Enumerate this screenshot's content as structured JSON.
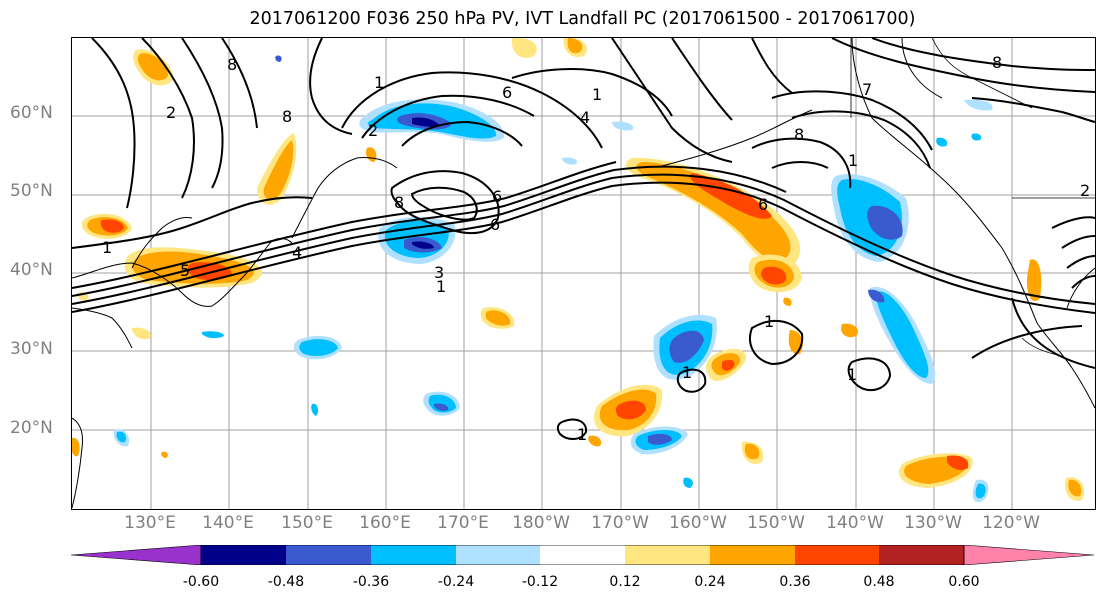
{
  "title": "2017061200 F036 250 hPa PV, IVT Landfall PC (2017061500 - 2017061700)",
  "map": {
    "lat_labels": [
      {
        "text": "60°N",
        "lat": 60
      },
      {
        "text": "50°N",
        "lat": 50
      },
      {
        "text": "40°N",
        "lat": 40
      },
      {
        "text": "30°N",
        "lat": 30
      },
      {
        "text": "20°N",
        "lat": 20
      }
    ],
    "lon_labels": [
      {
        "text": "130°E",
        "lon": 130
      },
      {
        "text": "140°E",
        "lon": 140
      },
      {
        "text": "150°E",
        "lon": 150
      },
      {
        "text": "160°E",
        "lon": 160
      },
      {
        "text": "170°E",
        "lon": 170
      },
      {
        "text": "180°W",
        "lon": 180
      },
      {
        "text": "170°W",
        "lon": 190
      },
      {
        "text": "160°W",
        "lon": 200
      },
      {
        "text": "150°W",
        "lon": 210
      },
      {
        "text": "140°W",
        "lon": 220
      },
      {
        "text": "130°W",
        "lon": 230
      },
      {
        "text": "120°W",
        "lon": 240
      }
    ],
    "contour_labels": [
      "1",
      "2",
      "3",
      "4",
      "5",
      "6",
      "7",
      "8"
    ]
  },
  "colorbar": {
    "colors": [
      "#9932cc",
      "#00008b",
      "#3a5bd0",
      "#00bfff",
      "#b0e0ff",
      "#ffffff",
      "#ffe680",
      "#ffa500",
      "#ff4500",
      "#b22222",
      "#ff82ab"
    ],
    "ticks": [
      "-0.60",
      "-0.48",
      "-0.36",
      "-0.24",
      "-0.12",
      "0.12",
      "0.24",
      "0.36",
      "0.48",
      "0.60"
    ]
  }
}
